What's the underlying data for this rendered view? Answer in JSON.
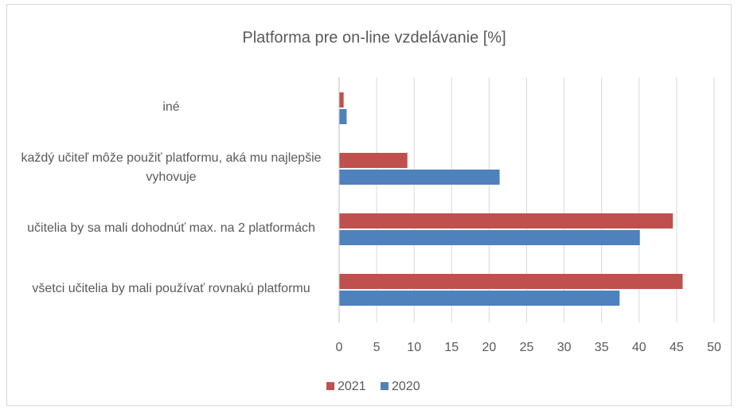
{
  "chart_data": {
    "type": "barh",
    "title": "Platforma pre on-line vzdelávanie [%]",
    "categories": [
      "iné",
      "každý učiteľ môže použiť platformu, aká mu najlepšie vyhovuje",
      "učitelia by sa mali dohodnúť max. na 2 platformách",
      "všetci učitelia by mali používať rovnakú platformu"
    ],
    "series": [
      {
        "name": "2021",
        "color": "#c0504d",
        "values": [
          0.6,
          9.1,
          44.5,
          45.8
        ]
      },
      {
        "name": "2020",
        "color": "#4f81bd",
        "values": [
          1.0,
          21.4,
          40.1,
          37.4
        ]
      }
    ],
    "xlim": [
      0,
      50
    ],
    "xticks": [
      0,
      5,
      10,
      15,
      20,
      25,
      30,
      35,
      40,
      45,
      50
    ],
    "grid": true,
    "legend": "bottom"
  }
}
